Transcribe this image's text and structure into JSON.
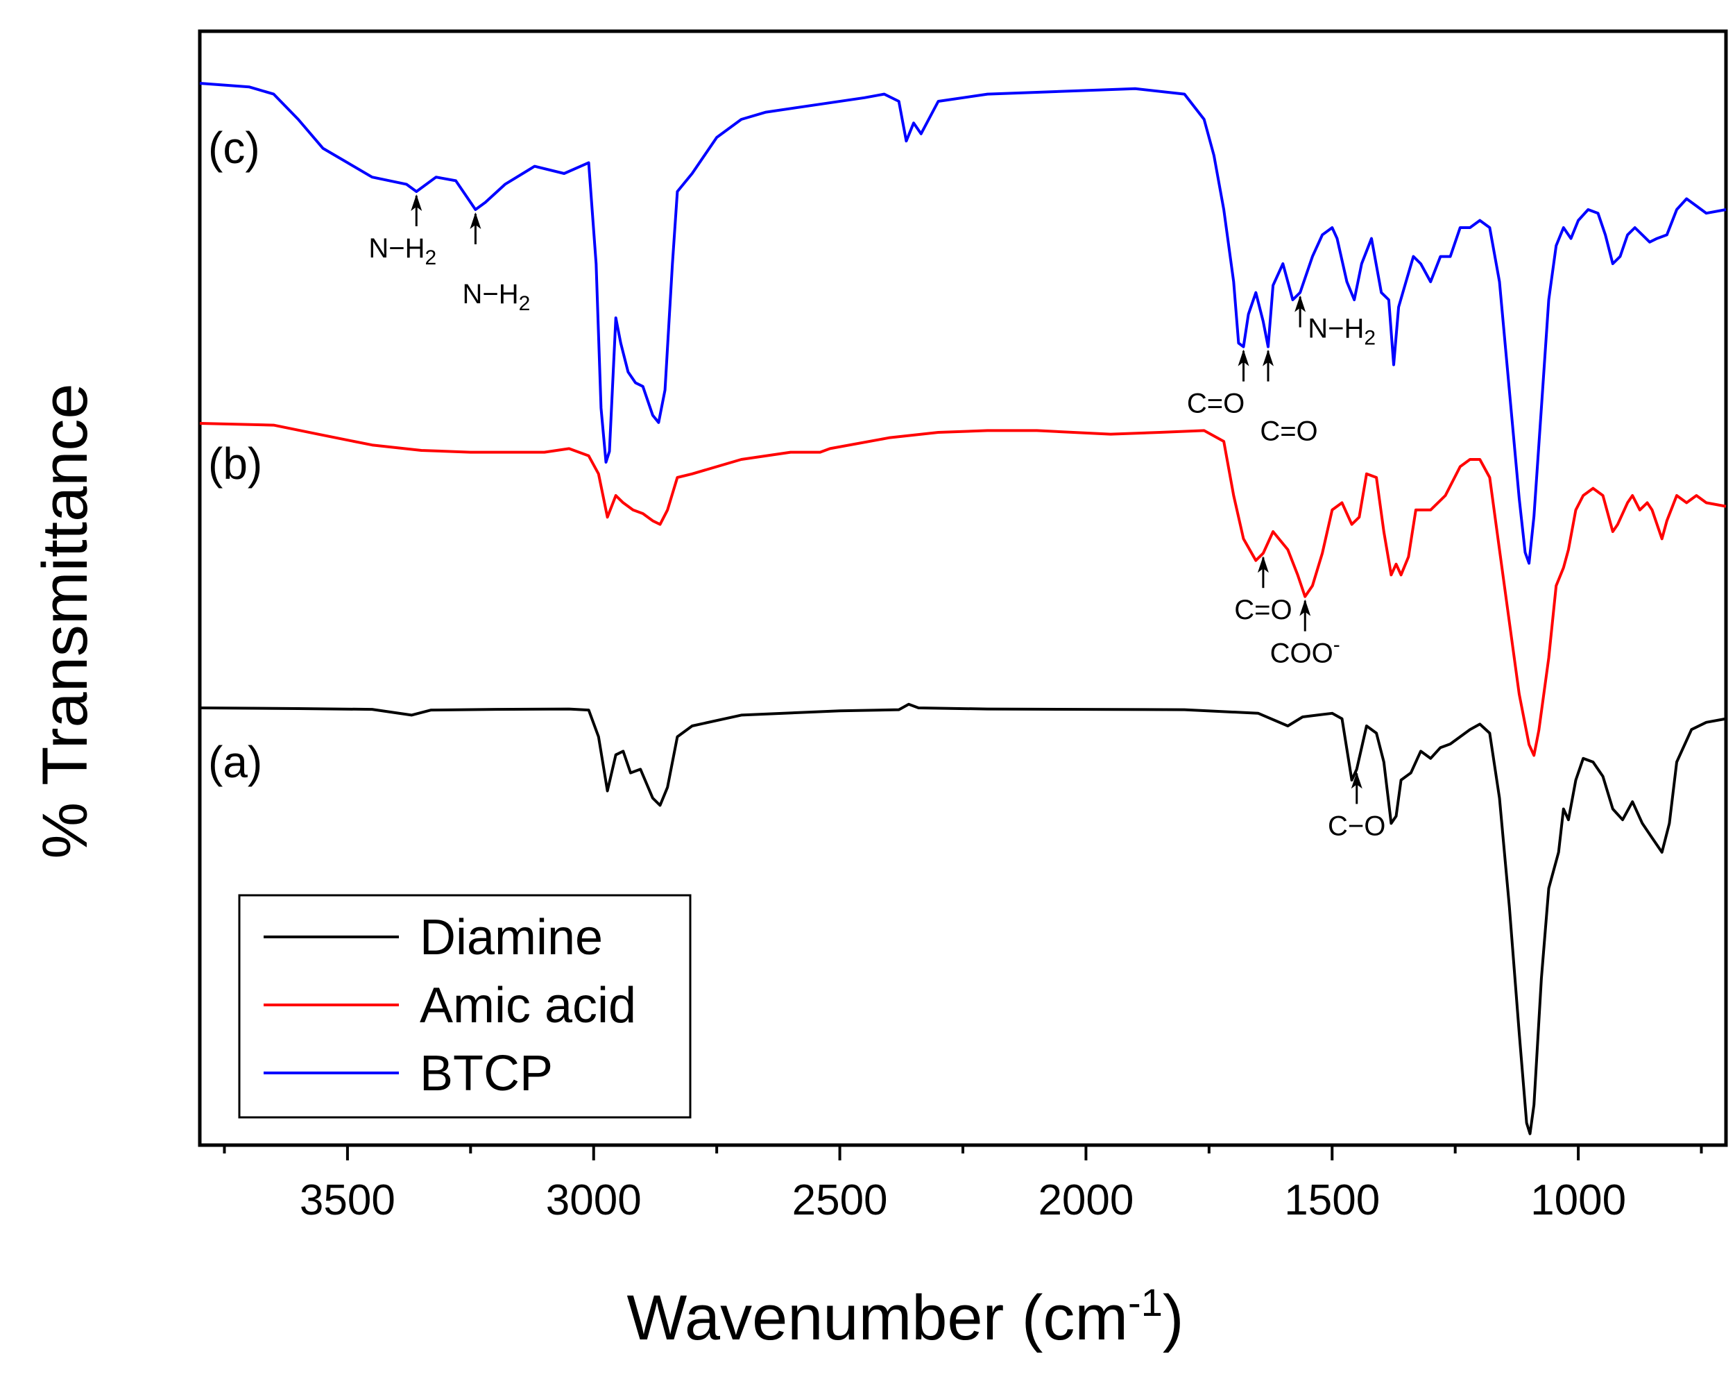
{
  "chart_data": {
    "type": "line",
    "title": "",
    "xlabel": "Wavenumber (cm",
    "xlabel_sup": "-1",
    "xlabel_end": ")",
    "ylabel": "% Transmittance",
    "xlim": [
      3800,
      700
    ],
    "x_reversed": true,
    "x_ticks": [
      3500,
      3000,
      2500,
      2000,
      1500,
      1000
    ],
    "x_tick_labels": [
      "3500",
      "3000",
      "2500",
      "2000",
      "1500",
      "1000"
    ],
    "y_ticks_shown": false,
    "legend_position": "bottom-left",
    "series": [
      {
        "name": "Diamine",
        "curve_label": "(a)",
        "color": "#000000",
        "baseline": 0.0,
        "points": [
          [
            3800,
            0
          ],
          [
            3600,
            0.002
          ],
          [
            3450,
            0.004
          ],
          [
            3370,
            0.02
          ],
          [
            3330,
            0.006
          ],
          [
            3200,
            0.004
          ],
          [
            3050,
            0.003
          ],
          [
            3010,
            0.006
          ],
          [
            2990,
            0.08
          ],
          [
            2972,
            0.23
          ],
          [
            2955,
            0.13
          ],
          [
            2940,
            0.12
          ],
          [
            2925,
            0.18
          ],
          [
            2905,
            0.17
          ],
          [
            2880,
            0.25
          ],
          [
            2865,
            0.27
          ],
          [
            2850,
            0.22
          ],
          [
            2830,
            0.08
          ],
          [
            2800,
            0.05
          ],
          [
            2700,
            0.02
          ],
          [
            2500,
            0.008
          ],
          [
            2380,
            0.005
          ],
          [
            2360,
            -0.01
          ],
          [
            2340,
            0.0
          ],
          [
            2200,
            0.003
          ],
          [
            2000,
            0.004
          ],
          [
            1800,
            0.005
          ],
          [
            1650,
            0.015
          ],
          [
            1590,
            0.05
          ],
          [
            1560,
            0.025
          ],
          [
            1500,
            0.015
          ],
          [
            1480,
            0.03
          ],
          [
            1460,
            0.2
          ],
          [
            1450,
            0.17
          ],
          [
            1430,
            0.05
          ],
          [
            1410,
            0.07
          ],
          [
            1395,
            0.15
          ],
          [
            1380,
            0.32
          ],
          [
            1370,
            0.3
          ],
          [
            1360,
            0.2
          ],
          [
            1340,
            0.18
          ],
          [
            1320,
            0.12
          ],
          [
            1300,
            0.14
          ],
          [
            1280,
            0.11
          ],
          [
            1260,
            0.1
          ],
          [
            1240,
            0.08
          ],
          [
            1220,
            0.06
          ],
          [
            1200,
            0.045
          ],
          [
            1180,
            0.07
          ],
          [
            1160,
            0.25
          ],
          [
            1140,
            0.55
          ],
          [
            1120,
            0.9
          ],
          [
            1105,
            1.15
          ],
          [
            1098,
            1.18
          ],
          [
            1090,
            1.1
          ],
          [
            1075,
            0.75
          ],
          [
            1060,
            0.5
          ],
          [
            1040,
            0.4
          ],
          [
            1030,
            0.28
          ],
          [
            1020,
            0.31
          ],
          [
            1005,
            0.2
          ],
          [
            990,
            0.14
          ],
          [
            970,
            0.15
          ],
          [
            950,
            0.19
          ],
          [
            930,
            0.28
          ],
          [
            910,
            0.31
          ],
          [
            890,
            0.26
          ],
          [
            870,
            0.32
          ],
          [
            850,
            0.36
          ],
          [
            830,
            0.4
          ],
          [
            815,
            0.32
          ],
          [
            800,
            0.15
          ],
          [
            770,
            0.06
          ],
          [
            740,
            0.04
          ],
          [
            700,
            0.03
          ]
        ]
      },
      {
        "name": "Amic acid",
        "curve_label": "(b)",
        "color": "#ff0000",
        "baseline": 0.0,
        "points": [
          [
            3800,
            0
          ],
          [
            3650,
            0.005
          ],
          [
            3560,
            0.03
          ],
          [
            3450,
            0.06
          ],
          [
            3350,
            0.075
          ],
          [
            3250,
            0.08
          ],
          [
            3100,
            0.08
          ],
          [
            3050,
            0.07
          ],
          [
            3010,
            0.09
          ],
          [
            2990,
            0.14
          ],
          [
            2972,
            0.26
          ],
          [
            2955,
            0.2
          ],
          [
            2940,
            0.22
          ],
          [
            2920,
            0.24
          ],
          [
            2900,
            0.25
          ],
          [
            2880,
            0.27
          ],
          [
            2865,
            0.28
          ],
          [
            2850,
            0.24
          ],
          [
            2830,
            0.15
          ],
          [
            2800,
            0.14
          ],
          [
            2700,
            0.1
          ],
          [
            2600,
            0.08
          ],
          [
            2540,
            0.08
          ],
          [
            2520,
            0.07
          ],
          [
            2400,
            0.04
          ],
          [
            2300,
            0.025
          ],
          [
            2200,
            0.02
          ],
          [
            2100,
            0.02
          ],
          [
            1950,
            0.03
          ],
          [
            1850,
            0.025
          ],
          [
            1760,
            0.02
          ],
          [
            1720,
            0.05
          ],
          [
            1700,
            0.2
          ],
          [
            1680,
            0.32
          ],
          [
            1655,
            0.38
          ],
          [
            1640,
            0.36
          ],
          [
            1620,
            0.3
          ],
          [
            1590,
            0.35
          ],
          [
            1570,
            0.42
          ],
          [
            1555,
            0.48
          ],
          [
            1540,
            0.45
          ],
          [
            1520,
            0.36
          ],
          [
            1500,
            0.24
          ],
          [
            1480,
            0.22
          ],
          [
            1460,
            0.28
          ],
          [
            1445,
            0.26
          ],
          [
            1430,
            0.14
          ],
          [
            1410,
            0.15
          ],
          [
            1395,
            0.3
          ],
          [
            1380,
            0.42
          ],
          [
            1370,
            0.39
          ],
          [
            1360,
            0.42
          ],
          [
            1345,
            0.37
          ],
          [
            1330,
            0.24
          ],
          [
            1300,
            0.24
          ],
          [
            1270,
            0.2
          ],
          [
            1240,
            0.12
          ],
          [
            1220,
            0.1
          ],
          [
            1200,
            0.1
          ],
          [
            1180,
            0.15
          ],
          [
            1160,
            0.35
          ],
          [
            1140,
            0.55
          ],
          [
            1120,
            0.75
          ],
          [
            1100,
            0.89
          ],
          [
            1090,
            0.92
          ],
          [
            1080,
            0.85
          ],
          [
            1060,
            0.65
          ],
          [
            1045,
            0.45
          ],
          [
            1030,
            0.4
          ],
          [
            1020,
            0.35
          ],
          [
            1005,
            0.24
          ],
          [
            990,
            0.2
          ],
          [
            970,
            0.18
          ],
          [
            950,
            0.2
          ],
          [
            930,
            0.3
          ],
          [
            920,
            0.28
          ],
          [
            900,
            0.22
          ],
          [
            890,
            0.2
          ],
          [
            875,
            0.24
          ],
          [
            860,
            0.22
          ],
          [
            850,
            0.24
          ],
          [
            830,
            0.32
          ],
          [
            820,
            0.27
          ],
          [
            800,
            0.2
          ],
          [
            780,
            0.22
          ],
          [
            760,
            0.2
          ],
          [
            740,
            0.22
          ],
          [
            700,
            0.23
          ]
        ]
      },
      {
        "name": "BTCP",
        "curve_label": "(c)",
        "color": "#0000ff",
        "baseline": 0.0,
        "points": [
          [
            3800,
            0
          ],
          [
            3700,
            0.01
          ],
          [
            3650,
            0.03
          ],
          [
            3600,
            0.1
          ],
          [
            3550,
            0.18
          ],
          [
            3500,
            0.22
          ],
          [
            3450,
            0.26
          ],
          [
            3380,
            0.28
          ],
          [
            3360,
            0.3
          ],
          [
            3320,
            0.26
          ],
          [
            3280,
            0.27
          ],
          [
            3240,
            0.35
          ],
          [
            3220,
            0.33
          ],
          [
            3180,
            0.28
          ],
          [
            3120,
            0.23
          ],
          [
            3060,
            0.25
          ],
          [
            3010,
            0.22
          ],
          [
            2995,
            0.5
          ],
          [
            2985,
            0.9
          ],
          [
            2975,
            1.05
          ],
          [
            2968,
            1.02
          ],
          [
            2955,
            0.65
          ],
          [
            2945,
            0.72
          ],
          [
            2930,
            0.8
          ],
          [
            2915,
            0.83
          ],
          [
            2900,
            0.84
          ],
          [
            2880,
            0.92
          ],
          [
            2868,
            0.94
          ],
          [
            2855,
            0.85
          ],
          [
            2840,
            0.5
          ],
          [
            2830,
            0.3
          ],
          [
            2800,
            0.25
          ],
          [
            2750,
            0.15
          ],
          [
            2700,
            0.1
          ],
          [
            2650,
            0.08
          ],
          [
            2550,
            0.06
          ],
          [
            2450,
            0.04
          ],
          [
            2410,
            0.03
          ],
          [
            2380,
            0.05
          ],
          [
            2365,
            0.16
          ],
          [
            2350,
            0.11
          ],
          [
            2335,
            0.14
          ],
          [
            2300,
            0.05
          ],
          [
            2200,
            0.03
          ],
          [
            2000,
            0.02
          ],
          [
            1900,
            0.015
          ],
          [
            1800,
            0.03
          ],
          [
            1760,
            0.1
          ],
          [
            1740,
            0.2
          ],
          [
            1720,
            0.35
          ],
          [
            1700,
            0.55
          ],
          [
            1690,
            0.72
          ],
          [
            1680,
            0.73
          ],
          [
            1670,
            0.64
          ],
          [
            1655,
            0.58
          ],
          [
            1640,
            0.66
          ],
          [
            1630,
            0.73
          ],
          [
            1620,
            0.56
          ],
          [
            1600,
            0.5
          ],
          [
            1580,
            0.6
          ],
          [
            1565,
            0.58
          ],
          [
            1540,
            0.48
          ],
          [
            1520,
            0.42
          ],
          [
            1500,
            0.4
          ],
          [
            1490,
            0.43
          ],
          [
            1470,
            0.55
          ],
          [
            1455,
            0.6
          ],
          [
            1440,
            0.5
          ],
          [
            1420,
            0.43
          ],
          [
            1400,
            0.58
          ],
          [
            1385,
            0.6
          ],
          [
            1375,
            0.78
          ],
          [
            1365,
            0.62
          ],
          [
            1350,
            0.55
          ],
          [
            1335,
            0.48
          ],
          [
            1320,
            0.5
          ],
          [
            1300,
            0.55
          ],
          [
            1280,
            0.48
          ],
          [
            1260,
            0.48
          ],
          [
            1240,
            0.4
          ],
          [
            1220,
            0.4
          ],
          [
            1200,
            0.38
          ],
          [
            1180,
            0.4
          ],
          [
            1160,
            0.55
          ],
          [
            1140,
            0.85
          ],
          [
            1120,
            1.15
          ],
          [
            1108,
            1.3
          ],
          [
            1100,
            1.33
          ],
          [
            1090,
            1.2
          ],
          [
            1075,
            0.9
          ],
          [
            1060,
            0.6
          ],
          [
            1045,
            0.45
          ],
          [
            1030,
            0.4
          ],
          [
            1015,
            0.43
          ],
          [
            1000,
            0.38
          ],
          [
            980,
            0.35
          ],
          [
            960,
            0.36
          ],
          [
            945,
            0.42
          ],
          [
            930,
            0.5
          ],
          [
            915,
            0.48
          ],
          [
            900,
            0.42
          ],
          [
            885,
            0.4
          ],
          [
            870,
            0.42
          ],
          [
            855,
            0.44
          ],
          [
            840,
            0.43
          ],
          [
            820,
            0.42
          ],
          [
            800,
            0.35
          ],
          [
            780,
            0.32
          ],
          [
            760,
            0.34
          ],
          [
            740,
            0.36
          ],
          [
            700,
            0.35
          ]
        ]
      }
    ],
    "annotations": [
      {
        "series": "BTCP",
        "wn": 3360,
        "label": "N−H",
        "sub": "2",
        "dir": "up"
      },
      {
        "series": "BTCP",
        "wn": 3240,
        "label": "N−H",
        "sub": "2",
        "dir": "up"
      },
      {
        "series": "BTCP",
        "wn": 1680,
        "label": "C=O",
        "sub": "",
        "dir": "up"
      },
      {
        "series": "BTCP",
        "wn": 1630,
        "label": "C=O",
        "sub": "",
        "dir": "up"
      },
      {
        "series": "BTCP",
        "wn": 1565,
        "label": "N−H",
        "sub": "2",
        "dir": "up"
      },
      {
        "series": "Amic acid",
        "wn": 1640,
        "label": "C=O",
        "sub": "",
        "dir": "up"
      },
      {
        "series": "Amic acid",
        "wn": 1555,
        "label": "COO",
        "sup": "-",
        "dir": "up"
      },
      {
        "series": "Diamine",
        "wn": 1450,
        "label": "C−O",
        "sub": "",
        "dir": "up"
      }
    ]
  }
}
